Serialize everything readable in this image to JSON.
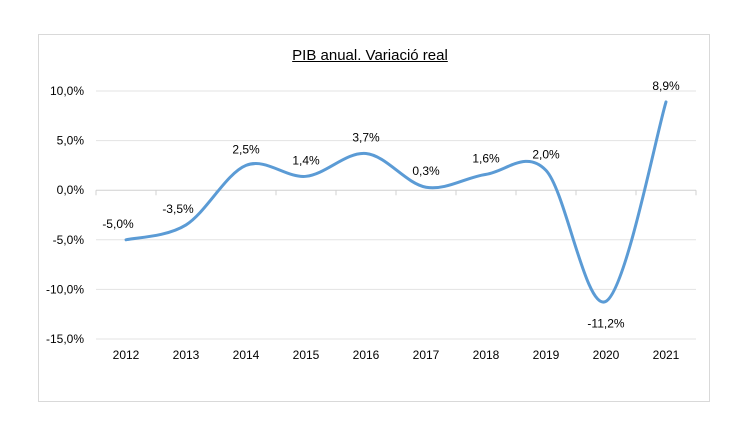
{
  "chart_data": {
    "type": "line",
    "title": "PIB anual. Variació real",
    "categories": [
      "2012",
      "2013",
      "2014",
      "2015",
      "2016",
      "2017",
      "2018",
      "2019",
      "2020",
      "2021"
    ],
    "series": [
      {
        "values": [
          -5.0,
          -3.5,
          2.5,
          1.4,
          3.7,
          0.3,
          1.6,
          2.0,
          -11.2,
          8.9
        ]
      }
    ],
    "data_labels": [
      "-5,0%",
      "-3,5%",
      "2,5%",
      "1,4%",
      "3,7%",
      "0,3%",
      "1,6%",
      "2,0%",
      "-11,2%",
      "8,9%"
    ],
    "y_ticks": [
      10,
      5,
      0,
      -5,
      -10,
      -15
    ],
    "y_tick_labels": [
      "10,0%",
      "5,0%",
      "0,0%",
      "-5,0%",
      "-10,0%",
      "-15,0%"
    ],
    "ylim": [
      -15,
      10
    ],
    "grid": true,
    "smooth": true,
    "line_color": "#5b9bd5"
  }
}
